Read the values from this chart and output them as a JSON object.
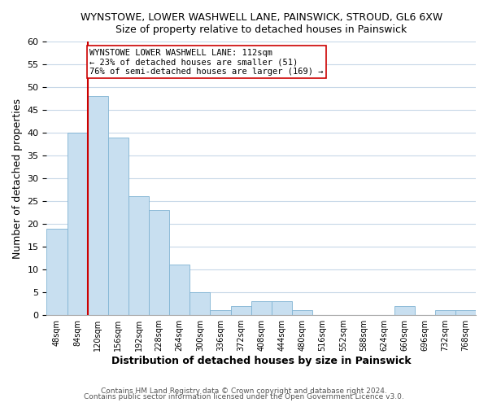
{
  "title1": "WYNSTOWE, LOWER WASHWELL LANE, PAINSWICK, STROUD, GL6 6XW",
  "title2": "Size of property relative to detached houses in Painswick",
  "xlabel": "Distribution of detached houses by size in Painswick",
  "ylabel": "Number of detached properties",
  "bar_labels": [
    "48sqm",
    "84sqm",
    "120sqm",
    "156sqm",
    "192sqm",
    "228sqm",
    "264sqm",
    "300sqm",
    "336sqm",
    "372sqm",
    "408sqm",
    "444sqm",
    "480sqm",
    "516sqm",
    "552sqm",
    "588sqm",
    "624sqm",
    "660sqm",
    "696sqm",
    "732sqm",
    "768sqm"
  ],
  "bar_values": [
    19,
    40,
    48,
    39,
    26,
    23,
    11,
    5,
    1,
    2,
    3,
    3,
    1,
    0,
    0,
    0,
    0,
    2,
    0,
    1,
    1
  ],
  "bar_color": "#c8dff0",
  "bar_edge_color": "#7fb3d3",
  "vline_color": "#cc0000",
  "ylim": [
    0,
    60
  ],
  "yticks": [
    0,
    5,
    10,
    15,
    20,
    25,
    30,
    35,
    40,
    45,
    50,
    55,
    60
  ],
  "annotation_line1": "WYNSTOWE LOWER WASHWELL LANE: 112sqm",
  "annotation_line2": "← 23% of detached houses are smaller (51)",
  "annotation_line3": "76% of semi-detached houses are larger (169) →",
  "footer1": "Contains HM Land Registry data © Crown copyright and database right 2024.",
  "footer2": "Contains public sector information licensed under the Open Government Licence v3.0.",
  "background_color": "#ffffff",
  "grid_color": "#c8d8e8"
}
